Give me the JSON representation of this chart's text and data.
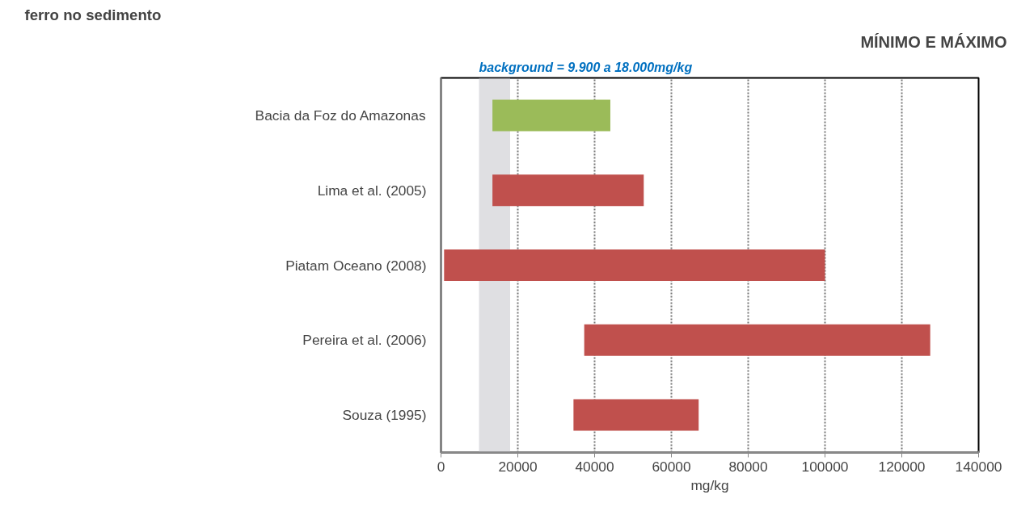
{
  "chart_data": {
    "type": "bar",
    "orientation": "horizontal",
    "title": "ferro no sedimento",
    "subtitle": "MÍNIMO E MÁXIMO",
    "xlabel": "mg/kg",
    "categories": [
      "Bacia da Foz do Amazonas",
      "Lima et al. (2005)",
      "Piatam Oceano (2008)",
      "Pereira et al. (2006)",
      "Souza (1995)"
    ],
    "base": [
      13400,
      13400,
      800,
      37300,
      34500
    ],
    "values": [
      30700,
      39400,
      99200,
      90100,
      32600
    ],
    "colors": [
      "#9bbb59",
      "#c0504d",
      "#c0504d",
      "#c0504d",
      "#c0504d"
    ],
    "xlim": [
      0,
      140000
    ],
    "xticks": [
      0,
      20000,
      40000,
      60000,
      80000,
      100000,
      120000,
      140000
    ],
    "grid": "x",
    "bands": [
      {
        "axis": "x",
        "from": 9900,
        "to": 18000,
        "label": "background = 9.900 a 18.000mg/kg",
        "color": "#c4c5ca"
      }
    ]
  }
}
